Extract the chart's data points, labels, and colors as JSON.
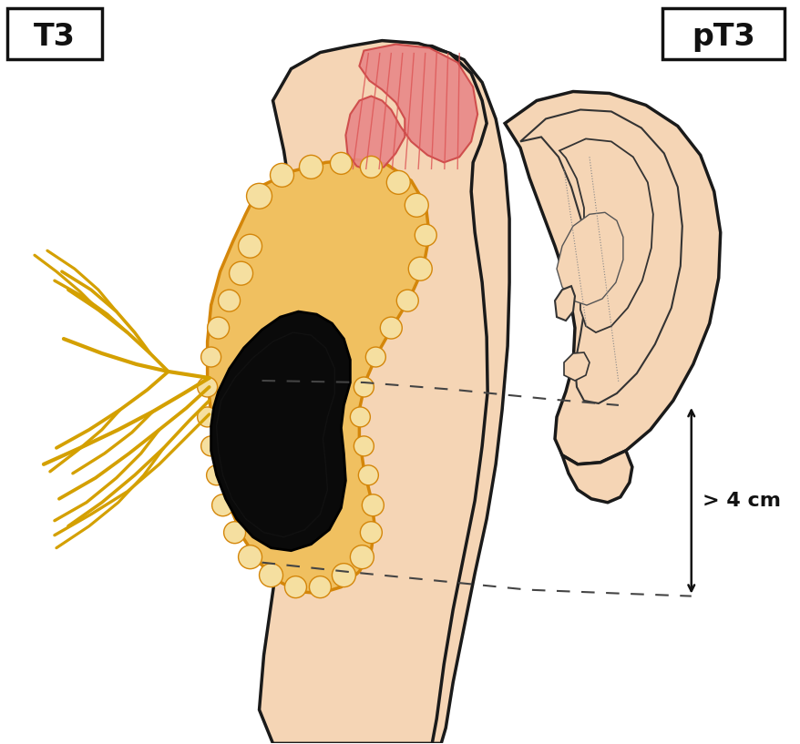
{
  "background_color": "#ffffff",
  "skin_fill": "#f5d5b5",
  "skin_stroke": "#1a1a1a",
  "parotid_fill": "#f0c060",
  "parotid_stroke": "#d4860a",
  "parotid_light": "#f5dfa0",
  "tumor_fill": "#0a0a0a",
  "tumor_stroke": "#000000",
  "muscle_fill": "#e88888",
  "muscle_stroke": "#cc4444",
  "muscle_line": "#dd5555",
  "nerve_color": "#d4a000",
  "dashed_color": "#444444",
  "arrow_color": "#111111",
  "label_gt4cm": "> 4 cm",
  "label_T3": "T3",
  "label_pT3": "pT3",
  "fig_width": 8.79,
  "fig_height": 8.17,
  "dpi": 100
}
